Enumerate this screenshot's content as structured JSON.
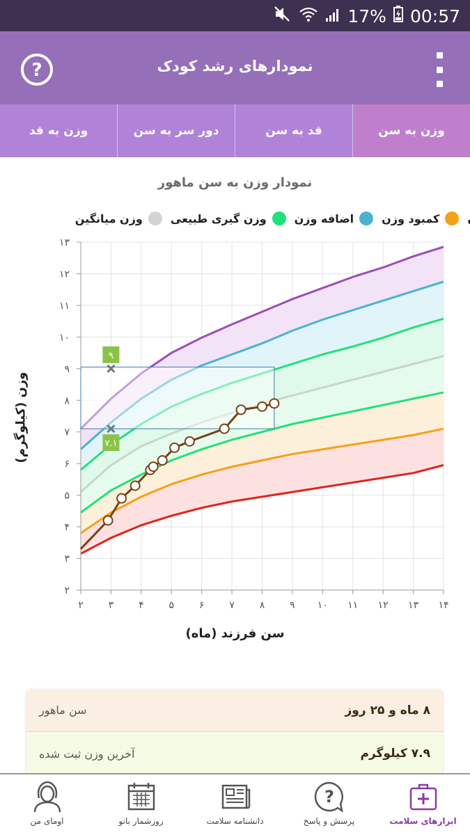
{
  "status": {
    "battery": "17%",
    "time": "00:57"
  },
  "appbar": {
    "title": "نمودارهای رشد کودک",
    "help_icon": "help-circle-icon",
    "menu_icon": "more-vert-icon"
  },
  "tabs": [
    {
      "label": "وزن به سن",
      "active": true
    },
    {
      "label": "قد به سن",
      "active": false
    },
    {
      "label": "دور سر به سن",
      "active": false
    },
    {
      "label": "وزن به قد",
      "active": false
    }
  ],
  "chart_title": "نمودار وزن به سن ماهور",
  "legend": [
    {
      "label": "ن",
      "color": "#9b4fb5"
    },
    {
      "label": "کمبود وزن",
      "color": "#f5a01a"
    },
    {
      "label": "اضافه وزن",
      "color": "#4ab3cf"
    },
    {
      "label": "وزن گیری طبیعی",
      "color": "#22e07a"
    },
    {
      "label": "وزن میانگین",
      "color": "#d3d3d3"
    }
  ],
  "chart_data": {
    "type": "line",
    "xlabel": "سن فرزند (ماه)",
    "ylabel": "وزن (کیلوگرم)",
    "xlim": [
      2,
      14
    ],
    "ylim": [
      2,
      13
    ],
    "x_ticks": [
      "۲",
      "۳",
      "۴",
      "۵",
      "۶",
      "۷",
      "۸",
      "۹",
      "۱۰",
      "۱۱",
      "۱۲",
      "۱۳",
      "۱۴"
    ],
    "y_ticks": [
      "۲",
      "۳",
      "۴",
      "۵",
      "۶",
      "۷",
      "۸",
      "۹",
      "۱۰",
      "۱۱",
      "۱۲",
      "۱۳"
    ],
    "grid": true,
    "reference_curves": [
      {
        "color": "#9b4fb5",
        "fill": "#f2e3f6",
        "x": [
          2,
          3,
          4,
          5,
          6,
          7,
          8,
          9,
          10,
          11,
          12,
          13,
          14
        ],
        "y": [
          7.1,
          8.05,
          8.85,
          9.5,
          9.98,
          10.4,
          10.8,
          11.2,
          11.55,
          11.9,
          12.2,
          12.55,
          12.85
        ]
      },
      {
        "color": "#4ab3cf",
        "fill": "#e0f4fa",
        "x": [
          2,
          3,
          4,
          5,
          6,
          7,
          8,
          9,
          10,
          11,
          12,
          13,
          14
        ],
        "y": [
          6.45,
          7.3,
          8.05,
          8.65,
          9.1,
          9.45,
          9.8,
          10.2,
          10.55,
          10.85,
          11.15,
          11.45,
          11.75
        ]
      },
      {
        "color": "#22e07a",
        "fill": "#dff9ea",
        "x": [
          2,
          3,
          4,
          5,
          6,
          7,
          8,
          9,
          10,
          11,
          12,
          13,
          14
        ],
        "y": [
          5.8,
          6.6,
          7.25,
          7.8,
          8.2,
          8.55,
          8.85,
          9.15,
          9.45,
          9.7,
          9.98,
          10.3,
          10.58
        ]
      },
      {
        "color": "#c8d6cc",
        "fill": "#e5fbed",
        "x": [
          2,
          3,
          4,
          5,
          6,
          7,
          8,
          9,
          10,
          11,
          12,
          13,
          14
        ],
        "y": [
          5.1,
          5.95,
          6.55,
          6.95,
          7.3,
          7.6,
          7.9,
          8.15,
          8.4,
          8.65,
          8.9,
          9.15,
          9.4
        ]
      },
      {
        "color": "#22e07a",
        "fill": "#fdf0da",
        "x": [
          2,
          3,
          4,
          5,
          6,
          7,
          8,
          9,
          10,
          11,
          12,
          13,
          14
        ],
        "y": [
          4.45,
          5.15,
          5.65,
          6.1,
          6.45,
          6.75,
          7.0,
          7.25,
          7.45,
          7.65,
          7.85,
          8.05,
          8.25
        ]
      },
      {
        "color": "#f5a01a",
        "fill": "#fde1e1",
        "x": [
          2,
          3,
          4,
          5,
          6,
          7,
          8,
          9,
          10,
          11,
          12,
          13,
          14
        ],
        "y": [
          3.8,
          4.45,
          4.95,
          5.35,
          5.65,
          5.9,
          6.1,
          6.3,
          6.45,
          6.6,
          6.75,
          6.9,
          7.1
        ]
      },
      {
        "color": "#e0241c",
        "fill": "none",
        "x": [
          2,
          3,
          4,
          5,
          6,
          7,
          8,
          9,
          10,
          11,
          12,
          13,
          14
        ],
        "y": [
          3.15,
          3.65,
          4.05,
          4.35,
          4.6,
          4.8,
          4.95,
          5.1,
          5.25,
          5.4,
          5.55,
          5.7,
          5.95
        ]
      }
    ],
    "series": [
      {
        "color": "#7a4016",
        "x": [
          2,
          2.9,
          3.35,
          3.8,
          4.3,
          4.4,
          4.7,
          5.1,
          5.6,
          6.75,
          7.3,
          8.0,
          8.4
        ],
        "y": [
          3.3,
          4.2,
          4.9,
          5.3,
          5.8,
          5.9,
          6.1,
          6.5,
          6.7,
          7.1,
          7.7,
          7.8,
          7.9
        ]
      }
    ],
    "range_box": {
      "x": [
        2,
        8.4
      ],
      "y": [
        7.1,
        9.05
      ]
    },
    "range_labels": [
      {
        "x": 3,
        "y": 9.0,
        "text": "۹"
      },
      {
        "x": 3,
        "y": 7.1,
        "text": "۷.۱"
      }
    ]
  },
  "info": {
    "age_label": "سن ماهور",
    "age_value": "۸ ماه و ۲۵ روز",
    "weight_label": "آخرین وزن ثبت شده",
    "weight_value": "۷.۹ کیلوگرم"
  },
  "bottom_nav": [
    {
      "label": "ابزارهای سلامت",
      "icon": "medical-kit-icon",
      "active": true
    },
    {
      "label": "پرسش و پاسخ",
      "icon": "question-bubble-icon",
      "active": false
    },
    {
      "label": "دانشنامه سلامت",
      "icon": "newspaper-icon",
      "active": false
    },
    {
      "label": "روزشمار بانو",
      "icon": "calendar-icon",
      "active": false
    },
    {
      "label": "اومای من",
      "icon": "woman-avatar-icon",
      "active": false
    }
  ],
  "colors": {
    "appbar": "#9570b8",
    "tabs": "#b183d8",
    "active_tab": "#c07fcc",
    "accent": "#8a3aa0"
  }
}
